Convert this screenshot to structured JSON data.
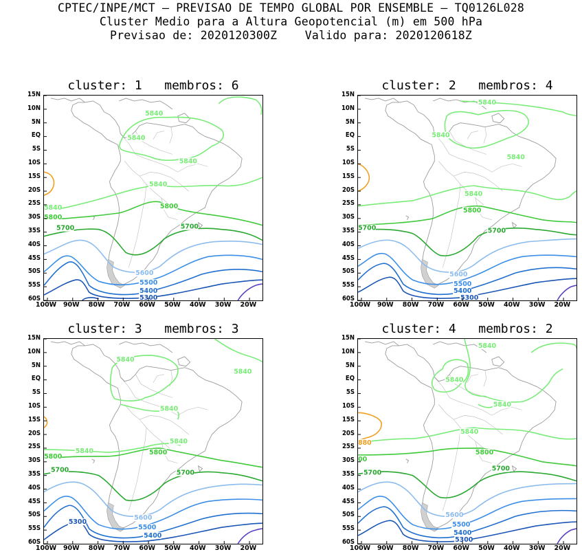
{
  "header": {
    "line1": "CPTEC/INPE/MCT – PREVISAO DE TEMPO GLOBAL POR ENSEMBLE – TQ0126L028",
    "line2": "Cluster Medio para a Altura Geopotencial (m) em 500 hPa",
    "line3": "Previsao de: 2020120300Z    Valido para: 2020120618Z"
  },
  "lat_labels": [
    "15N",
    "10N",
    "5N",
    "EQ",
    "5S",
    "10S",
    "15S",
    "20S",
    "25S",
    "30S",
    "35S",
    "40S",
    "45S",
    "50S",
    "55S",
    "60S"
  ],
  "lon_labels": [
    "100W",
    "90W",
    "80W",
    "70W",
    "60W",
    "50W",
    "40W",
    "30W",
    "20W"
  ],
  "colors": {
    "c5300": "#1a55b5",
    "c5400": "#1f6fd0",
    "c5500": "#3b8ee8",
    "c5600": "#8cbcee",
    "c5700": "#28a82f",
    "c5800": "#3fca3a",
    "c5840": "#79ec78",
    "c5880": "#f0a020",
    "cPurple": "#5b40c0",
    "coast": "#9a9a9a"
  },
  "panels": [
    {
      "title": "cluster: 1   membros: 6",
      "labels": {
        "a": "5840",
        "b": "5840",
        "c": "5840",
        "d": "5840",
        "e": "5800",
        "f": "5800",
        "g": "5700",
        "h": "5700",
        "i": "5600",
        "j": "5500",
        "k": "5400",
        "l": "5300",
        "m": "5840"
      }
    },
    {
      "title": "cluster: 2   membros: 4",
      "labels": {
        "a": "5840",
        "b": "5840",
        "c": "5840",
        "d": "5840",
        "e": "5800",
        "f": "5700",
        "g": "5700",
        "h": "5600",
        "i": "5500",
        "j": "5400",
        "k": "5300"
      }
    },
    {
      "title": "cluster: 3   membros: 3",
      "labels": {
        "a": "5840",
        "b": "5840",
        "c": "5840",
        "d": "5840",
        "e": "5840",
        "f": "5800",
        "g": "5800",
        "h": "5700",
        "i": "5700",
        "j": "5600",
        "k": "5500",
        "l": "5300",
        "m": "5400"
      }
    },
    {
      "title": "cluster: 4   membros: 2",
      "labels": {
        "a": "5840",
        "b": "5840",
        "c": "5840",
        "d": "5840",
        "e": "880",
        "f": "5800",
        "g": "00",
        "h": "5700",
        "i": "5700",
        "j": "5600",
        "k": "5500",
        "l": "5400",
        "m": "5300"
      }
    }
  ]
}
